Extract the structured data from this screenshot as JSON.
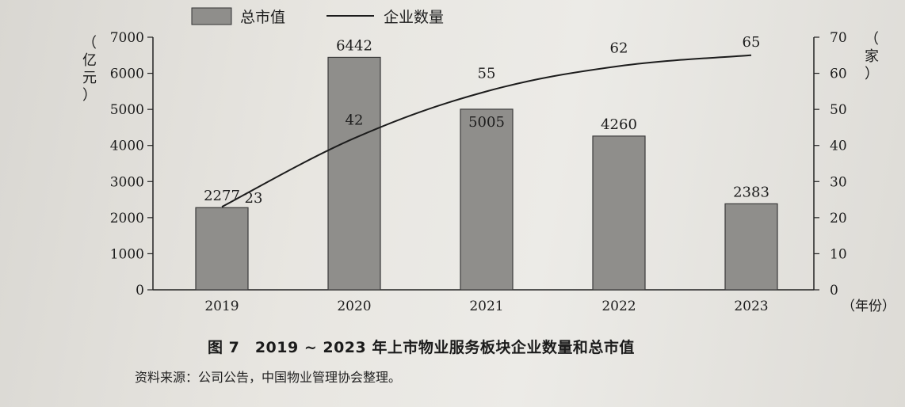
{
  "chart_data": {
    "type": "bar",
    "title": "图 7　2019 ~ 2023 年上市物业服务板块企业数量和总市值",
    "source_note": "资料来源：公司公告，中国物业管理协会整理。",
    "categories": [
      "2019",
      "2020",
      "2021",
      "2022",
      "2023"
    ],
    "x_unit": "（年份）",
    "series": [
      {
        "name": "总市值",
        "type": "bar",
        "axis": "left",
        "values": [
          2277,
          6442,
          5005,
          4260,
          2383
        ],
        "color": "#8f8e8b"
      },
      {
        "name": "企业数量",
        "type": "line",
        "axis": "right",
        "values": [
          23,
          42,
          55,
          62,
          65
        ],
        "color": "#1c1c1c"
      }
    ],
    "ylabel_left": "（亿元）",
    "ylabel_right": "（家）",
    "ylim_left": [
      0,
      7000
    ],
    "yticks_left": [
      0,
      1000,
      2000,
      3000,
      4000,
      5000,
      6000,
      7000
    ],
    "ylim_right": [
      0,
      70
    ],
    "yticks_right": [
      0,
      10,
      20,
      30,
      40,
      50,
      60,
      70
    ],
    "grid": false,
    "legend_position": "top-left"
  }
}
